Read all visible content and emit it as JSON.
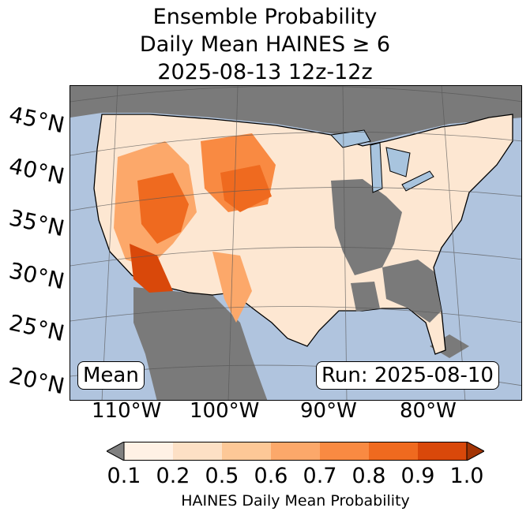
{
  "title": {
    "line1": "Ensemble Probability",
    "line2": "Daily Mean HAINES ≥ 6",
    "line3": "2025-08-13 12z-12z"
  },
  "map": {
    "lat_labels": [
      "45°N",
      "40°N",
      "35°N",
      "30°N",
      "25°N",
      "20°N"
    ],
    "lon_labels": [
      "110°W",
      "100°W",
      "90°W",
      "80°W"
    ],
    "mean_label": "Mean",
    "run_label": "Run: 2025-08-10",
    "colors": {
      "ocean": "#b0c4de",
      "no_data_land": "#7a7a7a",
      "lakes": "#a8c4de"
    }
  },
  "colorbar": {
    "ticks": [
      "0.1",
      "0.2",
      "0.5",
      "0.6",
      "0.7",
      "0.8",
      "0.9",
      "1.0"
    ],
    "colors": [
      "#fff1e5",
      "#fde0c5",
      "#fdc897",
      "#fca86a",
      "#f98a42",
      "#ef6a1f",
      "#d9480a"
    ],
    "under_color": "#808080",
    "over_color": "#a33404",
    "label": "HAINES Daily Mean Probability"
  }
}
